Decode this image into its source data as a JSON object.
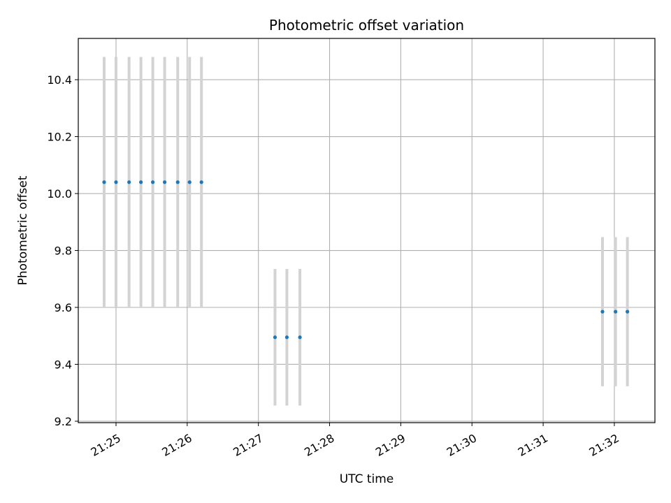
{
  "chart_data": {
    "type": "scatter",
    "title": "Photometric offset variation",
    "xlabel": "UTC time",
    "ylabel": "Photometric offset",
    "x_tick_labels": [
      "21:25",
      "21:26",
      "21:27",
      "21:28",
      "21:29",
      "21:30",
      "21:31",
      "21:32"
    ],
    "x_tick_minutes": [
      25,
      26,
      27,
      28,
      29,
      30,
      31,
      32
    ],
    "xlim_minutes": [
      24.47,
      32.57
    ],
    "x_time_prefix": "21:",
    "y_ticks": [
      9.2,
      9.4,
      9.6,
      9.8,
      10.0,
      10.2,
      10.4
    ],
    "y_tick_labels": [
      "9.2",
      "9.4",
      "9.6",
      "9.8",
      "10.0",
      "10.2",
      "10.4"
    ],
    "ylim": [
      9.195,
      10.545
    ],
    "grid": true,
    "colors": {
      "points": "#1f77b4",
      "errorbars": "#d3d3d3",
      "grid": "#b0b0b0"
    },
    "series": [
      {
        "points": [
          {
            "x": "21:24:50",
            "y": 10.04,
            "yerr": 0.44
          },
          {
            "x": "21:25:00",
            "y": 10.04,
            "yerr": 0.44
          },
          {
            "x": "21:25:11",
            "y": 10.04,
            "yerr": 0.44
          },
          {
            "x": "21:25:21",
            "y": 10.04,
            "yerr": 0.44
          },
          {
            "x": "21:25:31",
            "y": 10.04,
            "yerr": 0.44
          },
          {
            "x": "21:25:41",
            "y": 10.04,
            "yerr": 0.44
          },
          {
            "x": "21:25:52",
            "y": 10.04,
            "yerr": 0.44
          },
          {
            "x": "21:26:02",
            "y": 10.04,
            "yerr": 0.44
          },
          {
            "x": "21:26:12",
            "y": 10.04,
            "yerr": 0.44
          },
          {
            "x": "21:27:14",
            "y": 9.495,
            "yerr": 0.24
          },
          {
            "x": "21:27:24",
            "y": 9.495,
            "yerr": 0.24
          },
          {
            "x": "21:27:35",
            "y": 9.495,
            "yerr": 0.24
          },
          {
            "x": "21:31:50",
            "y": 9.585,
            "yerr": 0.262
          },
          {
            "x": "21:32:01",
            "y": 9.585,
            "yerr": 0.262
          },
          {
            "x": "21:32:11",
            "y": 9.585,
            "yerr": 0.262
          }
        ]
      }
    ]
  }
}
